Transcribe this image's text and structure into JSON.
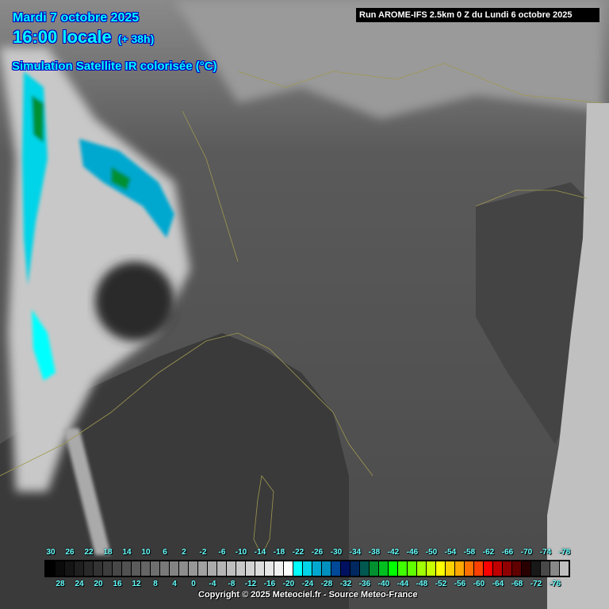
{
  "header": {
    "date": "Mardi 7 octobre 2025",
    "time": "16:00 locale",
    "lead": "(+ 38h)",
    "product": "Simulation Satellite IR colorisée (°C)",
    "run": "Run AROME-IFS 2.5km 0 Z du Lundi 6 octobre 2025"
  },
  "legend": {
    "top_labels": [
      "30",
      "26",
      "22",
      "18",
      "14",
      "10",
      "6",
      "2",
      "-2",
      "-6",
      "-10",
      "-14",
      "-18",
      "-22",
      "-26",
      "-30",
      "-34",
      "-38",
      "-42",
      "-46",
      "-50",
      "-54",
      "-58",
      "-62",
      "-66",
      "-70",
      "-74",
      "-78"
    ],
    "bottom_labels": [
      "28",
      "24",
      "20",
      "16",
      "12",
      "8",
      "4",
      "0",
      "-4",
      "-8",
      "-12",
      "-16",
      "-20",
      "-24",
      "-28",
      "-32",
      "-36",
      "-40",
      "-44",
      "-48",
      "-52",
      "-56",
      "-60",
      "-64",
      "-68",
      "-72",
      "-76"
    ],
    "colors": [
      "#000000",
      "#0b0b0b",
      "#151515",
      "#1f1f1f",
      "#292929",
      "#333333",
      "#3d3d3d",
      "#474747",
      "#515151",
      "#5b5b5b",
      "#656565",
      "#6f6f6f",
      "#797979",
      "#838383",
      "#8d8d8d",
      "#979797",
      "#a1a1a1",
      "#ababab",
      "#b5b5b5",
      "#bfbfbf",
      "#c9c9c9",
      "#d3d3d3",
      "#dddddd",
      "#e7e7e7",
      "#f1f1f1",
      "#ffffff",
      "#00ffff",
      "#00d4e8",
      "#00a8d0",
      "#0090c0",
      "#004898",
      "#001060",
      "#002860",
      "#005850",
      "#009030",
      "#00c020",
      "#00ff00",
      "#40ff00",
      "#60ff00",
      "#a0ff00",
      "#c8ff00",
      "#ffff00",
      "#ffd000",
      "#ffa800",
      "#ff7000",
      "#ff4000",
      "#ff0000",
      "#c00000",
      "#900000",
      "#600000",
      "#280000",
      "#181818",
      "#484848",
      "#888888",
      "#c0c0c0"
    ]
  },
  "footer": {
    "copyright": "Copyright © 2025 Meteociel.fr - Source Meteo-France"
  }
}
